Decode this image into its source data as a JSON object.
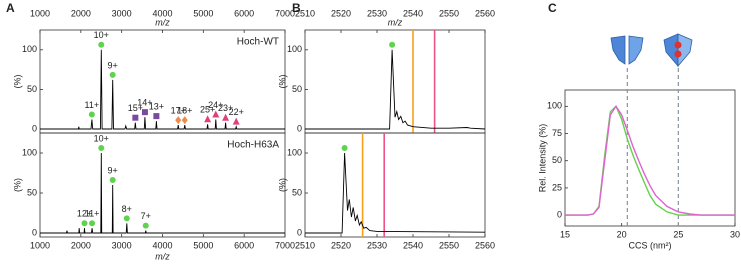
{
  "chart_data": [
    {
      "type": "line",
      "panel": "A",
      "xlabel": "m/z",
      "xaxis": "top",
      "ylabel": "(%)",
      "annotation": "Hoch-WT",
      "xlim": [
        1000,
        7000
      ],
      "xticks": [
        1000,
        2000,
        3000,
        4000,
        5000,
        6000,
        7000
      ],
      "ylim": [
        -5,
        125
      ],
      "yticks": [
        0,
        50,
        100
      ],
      "series": [
        {
          "color": "#000000",
          "x": [
            1000,
            1940,
            1950,
            1960,
            2250,
            2270,
            2290,
            2480,
            2500,
            2520,
            2760,
            2780,
            2800,
            3080,
            3100,
            3120,
            3320,
            3335,
            3350,
            3555,
            3570,
            3585,
            3835,
            3850,
            3865,
            4370,
            4385,
            4400,
            4530,
            4545,
            4560,
            5090,
            5105,
            5120,
            5290,
            5305,
            5320,
            5530,
            5545,
            5560,
            5790,
            5805,
            5820,
            7000
          ],
          "values": [
            0,
            0,
            3,
            0,
            0,
            12,
            0,
            0,
            100,
            0,
            0,
            62,
            0,
            0,
            4,
            0,
            0,
            8,
            0,
            0,
            15,
            0,
            0,
            10,
            0,
            0,
            5,
            0,
            0,
            5,
            0,
            0,
            6,
            0,
            0,
            12,
            0,
            0,
            8,
            0,
            0,
            3,
            0,
            0
          ]
        }
      ],
      "peaks": [
        {
          "label": "11+",
          "x": 2270,
          "y": 12,
          "marker": "circle",
          "color": "#5fd34f"
        },
        {
          "label": "10+",
          "x": 2500,
          "y": 100,
          "marker": "circle",
          "color": "#5fd34f"
        },
        {
          "label": "9+",
          "x": 2780,
          "y": 62,
          "marker": "circle",
          "color": "#5fd34f"
        },
        {
          "label": "15+",
          "x": 3335,
          "y": 8,
          "marker": "square",
          "color": "#7a4aa0"
        },
        {
          "label": "14+",
          "x": 3570,
          "y": 15,
          "marker": "square",
          "color": "#7a4aa0"
        },
        {
          "label": "13+",
          "x": 3850,
          "y": 10,
          "marker": "square",
          "color": "#7a4aa0"
        },
        {
          "label": "17+",
          "x": 4385,
          "y": 5,
          "marker": "diamond",
          "color": "#f08a4b"
        },
        {
          "label": "18+",
          "x": 4545,
          "y": 5,
          "marker": "diamond",
          "color": "#f08a4b"
        },
        {
          "label": "25+",
          "x": 5105,
          "y": 6,
          "marker": "triangle",
          "color": "#e0407a"
        },
        {
          "label": "24+",
          "x": 5305,
          "y": 12,
          "marker": "triangle",
          "color": "#e0407a"
        },
        {
          "label": "23+",
          "x": 5545,
          "y": 8,
          "marker": "triangle",
          "color": "#e0407a"
        },
        {
          "label": "22+",
          "x": 5805,
          "y": 3,
          "marker": "triangle",
          "color": "#e0407a"
        }
      ]
    },
    {
      "type": "line",
      "xlabel": "m/z",
      "xaxis": "bottom",
      "ylabel": "(%)",
      "annotation": "Hoch-H63A",
      "xlim": [
        1000,
        7000
      ],
      "xticks": [
        1000,
        2000,
        3000,
        4000,
        5000,
        6000,
        7000
      ],
      "ylim": [
        -5,
        125
      ],
      "yticks": [
        0,
        50,
        100
      ],
      "series": [
        {
          "color": "#000000",
          "x": [
            1000,
            1650,
            1660,
            1670,
            1950,
            1960,
            1970,
            2080,
            2090,
            2100,
            2260,
            2275,
            2290,
            2490,
            2500,
            2510,
            2770,
            2780,
            2790,
            3110,
            3125,
            3140,
            3580,
            3590,
            3600,
            7000
          ],
          "values": [
            0,
            0,
            3,
            0,
            0,
            6,
            0,
            0,
            6,
            0,
            0,
            6,
            0,
            0,
            100,
            0,
            0,
            60,
            0,
            0,
            12,
            0,
            0,
            3,
            0,
            0
          ]
        }
      ],
      "peaks": [
        {
          "label": "12+",
          "x": 2090,
          "y": 6,
          "marker": "circle",
          "color": "#5fd34f"
        },
        {
          "label": "11+",
          "x": 2275,
          "y": 6,
          "marker": "circle",
          "color": "#5fd34f"
        },
        {
          "label": "10+",
          "x": 2500,
          "y": 100,
          "marker": "circle",
          "color": "#5fd34f"
        },
        {
          "label": "9+",
          "x": 2780,
          "y": 60,
          "marker": "circle",
          "color": "#5fd34f"
        },
        {
          "label": "8+",
          "x": 3125,
          "y": 12,
          "marker": "circle",
          "color": "#5fd34f"
        },
        {
          "label": "7+",
          "x": 3590,
          "y": 3,
          "marker": "circle",
          "color": "#5fd34f"
        }
      ]
    },
    {
      "type": "line",
      "panel": "B",
      "xlabel": "m/z",
      "xaxis": "top",
      "ylabel": "(%)",
      "xlim": [
        2510,
        2560
      ],
      "xticks": [
        2510,
        2520,
        2530,
        2540,
        2550,
        2560
      ],
      "ylim": [
        -5,
        125
      ],
      "yticks": [
        0,
        50,
        100
      ],
      "series": [
        {
          "color": "#000000",
          "x": [
            2510,
            2533.5,
            2534.2,
            2535,
            2535.5,
            2536,
            2536.6,
            2537.2,
            2537.8,
            2538.5,
            2540,
            2545,
            2550,
            2555,
            2556,
            2560
          ],
          "values": [
            0,
            0,
            100,
            15,
            22,
            12,
            16,
            8,
            10,
            5,
            3,
            1,
            1,
            2,
            1,
            0
          ]
        }
      ],
      "peaks": [
        {
          "x": 2534.2,
          "y": 100,
          "marker": "circle",
          "color": "#5fd34f"
        }
      ],
      "ref_lines": [
        {
          "x": 2540,
          "color": "#f7a11a"
        },
        {
          "x": 2546,
          "color": "#f0508a"
        }
      ]
    },
    {
      "type": "line",
      "xaxis": "bottom",
      "ylabel": "(%)",
      "xlim": [
        2510,
        2560
      ],
      "xticks": [
        2510,
        2520,
        2530,
        2540,
        2550,
        2560
      ],
      "ylim": [
        -5,
        125
      ],
      "yticks": [
        0,
        50,
        100
      ],
      "series": [
        {
          "color": "#000000",
          "x": [
            2510,
            2520.3,
            2521,
            2521.8,
            2522.3,
            2522.9,
            2523.4,
            2524,
            2524.5,
            2525.1,
            2525.6,
            2526.3,
            2527,
            2528,
            2530,
            2560
          ],
          "values": [
            0,
            0,
            100,
            28,
            42,
            20,
            32,
            15,
            22,
            10,
            14,
            6,
            7,
            3,
            2,
            1
          ]
        }
      ],
      "peaks": [
        {
          "x": 2521,
          "y": 100,
          "marker": "circle",
          "color": "#5fd34f"
        }
      ],
      "ref_lines": [
        {
          "x": 2526,
          "color": "#f7a11a"
        },
        {
          "x": 2532,
          "color": "#f0508a"
        }
      ]
    },
    {
      "type": "line",
      "panel": "C",
      "xlabel": "CCS (nm²)",
      "xaxis": "bottom",
      "ylabel": "Rel. Intensity (%)",
      "xlim": [
        15,
        30
      ],
      "xticks": [
        15,
        20,
        25,
        30
      ],
      "ylim": [
        -10,
        115
      ],
      "yticks": [
        0,
        25,
        50,
        75,
        100
      ],
      "series": [
        {
          "color": "#62d24c",
          "x": [
            15,
            16,
            17,
            17.5,
            18,
            18.5,
            19,
            19.5,
            20,
            20.5,
            21,
            21.5,
            22,
            22.5,
            23,
            24,
            25,
            26,
            27,
            30
          ],
          "values": [
            0,
            0,
            0,
            1,
            8,
            55,
            95,
            100,
            88,
            70,
            55,
            42,
            30,
            18,
            10,
            3,
            0,
            0,
            0,
            0
          ]
        },
        {
          "color": "#e063d0",
          "x": [
            15,
            16,
            17,
            17.5,
            18,
            18.5,
            19,
            19.5,
            20,
            20.5,
            21,
            21.5,
            22,
            22.5,
            23,
            24,
            25,
            26,
            27,
            30
          ],
          "values": [
            0,
            0,
            0,
            1,
            7,
            50,
            92,
            100,
            92,
            78,
            63,
            50,
            38,
            27,
            18,
            8,
            3,
            1,
            0,
            0
          ]
        }
      ],
      "ref_lines": [
        {
          "x": 20.5,
          "color": "#8a93a0",
          "dashed": true
        },
        {
          "x": 25,
          "color": "#8a93a0",
          "dashed": true
        }
      ]
    }
  ]
}
